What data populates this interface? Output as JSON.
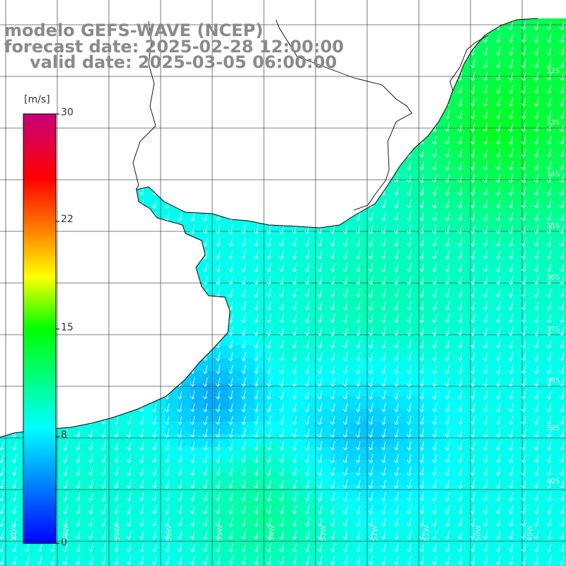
{
  "title": {
    "model": "modelo GEFS-WAVE (NCEP)",
    "forecast": "forecast date: 2025-02-28 12:00:00",
    "valid": "valid date: 2025-03-05 06:00:00"
  },
  "colorbar": {
    "unit": "[m/s]",
    "ticks": [
      {
        "label": "30",
        "value": 30
      },
      {
        "label": "22",
        "value": 22
      },
      {
        "label": "15",
        "value": 15
      },
      {
        "label": "8",
        "value": 8
      },
      {
        "label": "0",
        "value": 0
      }
    ],
    "min": 0,
    "max": 30,
    "colors": [
      "#0000ff",
      "#00ffff",
      "#00ff00",
      "#ffff00",
      "#ff8000",
      "#ff0000",
      "#c8007a"
    ]
  },
  "map": {
    "land_color": "#ffffff",
    "coast_color": "#000000",
    "grid_color": "#555555",
    "arrow_color": "#ffffff",
    "lat_labels": [
      "32S",
      "33S",
      "34S",
      "35S",
      "36S",
      "37S",
      "38S",
      "39S",
      "40S",
      "41S"
    ],
    "lon_labels": [
      "59W",
      "58W",
      "57W",
      "56W",
      "55W",
      "54W",
      "53W",
      "52W",
      "51W",
      "50W",
      "49W"
    ]
  }
}
